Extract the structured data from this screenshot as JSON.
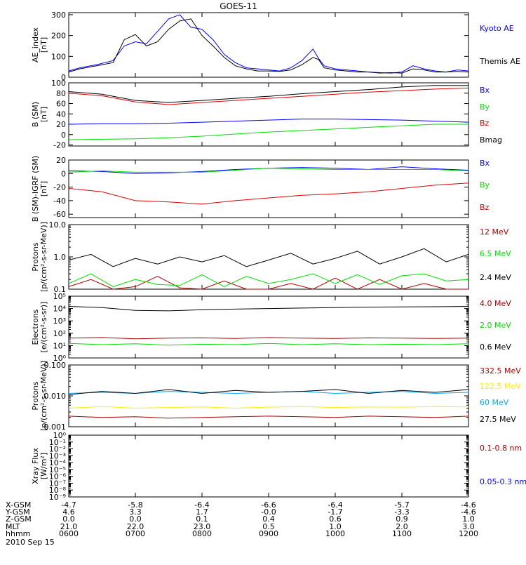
{
  "title": "GOES-11",
  "date_label": "2010 Sep 15",
  "colors": {
    "black": "#000000",
    "blue": "#0000ff",
    "green": "#00e000",
    "red": "#e00000",
    "darkred": "#aa0000",
    "yellow": "#ffee00",
    "cyan": "#00aaff"
  },
  "x_axis": {
    "range": [
      "0600",
      "1200"
    ],
    "ticks": [
      "0600",
      "0700",
      "0800",
      "0900",
      "1000",
      "1100",
      "1200"
    ]
  },
  "orbit_table": {
    "rows": [
      {
        "label": "X-GSM",
        "values": [
          "-4.7",
          "-5.8",
          "-6.4",
          "-6.6",
          "-6.4",
          "-5.7",
          "-4.6"
        ]
      },
      {
        "label": "Y-GSM",
        "values": [
          "4.6",
          "3.3",
          "1.7",
          "-0.0",
          "-1.7",
          "-3.3",
          "-4.6"
        ]
      },
      {
        "label": "Z-GSM",
        "values": [
          "0.0",
          "0.0",
          "0.1",
          "0.4",
          "0.6",
          "0.9",
          "1.0"
        ]
      },
      {
        "label": "MLT",
        "values": [
          "21.0",
          "22.0",
          "23.0",
          "0.5",
          "1.0",
          "2.0",
          "3.0"
        ]
      },
      {
        "label": "hhmm",
        "values": [
          "0600",
          "0700",
          "0800",
          "0900",
          "1000",
          "1100",
          "1200"
        ]
      }
    ]
  },
  "chart_data": [
    {
      "type": "line",
      "ylabel": [
        "AE_index",
        "[nT]"
      ],
      "yscale": "linear",
      "ylim": [
        0,
        310
      ],
      "yticks": [
        "0",
        "100",
        "200",
        "300"
      ],
      "series": [
        {
          "name": "Kyoto AE",
          "color": "blue",
          "x": [
            "0600",
            "0610",
            "0625",
            "0640",
            "0650",
            "0700",
            "0710",
            "0720",
            "0730",
            "0740",
            "0750",
            "0800",
            "0810",
            "0820",
            "0830",
            "0840",
            "0850",
            "0900",
            "0910",
            "0920",
            "0930",
            "0940",
            "0945",
            "0950",
            "1000",
            "1010",
            "1020",
            "1030",
            "1040",
            "1050",
            "1100",
            "1110",
            "1120",
            "1130",
            "1140",
            "1150",
            "1200"
          ],
          "y": [
            30,
            45,
            60,
            80,
            150,
            170,
            160,
            220,
            280,
            300,
            240,
            230,
            180,
            110,
            70,
            45,
            40,
            35,
            30,
            45,
            80,
            135,
            90,
            55,
            40,
            35,
            30,
            25,
            22,
            20,
            25,
            55,
            40,
            30,
            25,
            35,
            30
          ]
        },
        {
          "name": "Themis AE",
          "color": "black",
          "x": [
            "0600",
            "0610",
            "0625",
            "0640",
            "0650",
            "0700",
            "0710",
            "0720",
            "0730",
            "0740",
            "0750",
            "0800",
            "0810",
            "0820",
            "0830",
            "0840",
            "0850",
            "0900",
            "0910",
            "0920",
            "0930",
            "0940",
            "0945",
            "0950",
            "1000",
            "1010",
            "1020",
            "1030",
            "1040",
            "1050",
            "1100",
            "1110",
            "1120",
            "1130",
            "1140",
            "1150",
            "1200"
          ],
          "y": [
            25,
            40,
            55,
            70,
            180,
            205,
            150,
            170,
            230,
            270,
            280,
            200,
            150,
            95,
            55,
            40,
            30,
            30,
            28,
            35,
            60,
            95,
            85,
            45,
            35,
            30,
            25,
            25,
            20,
            22,
            20,
            40,
            35,
            25,
            25,
            28,
            25
          ]
        }
      ]
    },
    {
      "type": "line",
      "ylabel": [
        "B (SM)",
        "[nT]"
      ],
      "yscale": "linear",
      "ylim": [
        -22,
        100
      ],
      "yticks": [
        "-20",
        "0",
        "20",
        "40",
        "60",
        "80",
        "100"
      ],
      "series": [
        {
          "name": "Bx",
          "color": "blue",
          "x": [
            "0600",
            "0630",
            "0700",
            "0730",
            "0800",
            "0830",
            "0900",
            "0930",
            "1000",
            "1030",
            "1100",
            "1130",
            "1200"
          ],
          "y": [
            20,
            21,
            21,
            22,
            24,
            26,
            28,
            30,
            30,
            29,
            28,
            26,
            24
          ]
        },
        {
          "name": "By",
          "color": "green",
          "x": [
            "0600",
            "0630",
            "0700",
            "0730",
            "0800",
            "0830",
            "0900",
            "0930",
            "1000",
            "1030",
            "1100",
            "1130",
            "1200"
          ],
          "y": [
            -10,
            -9,
            -8,
            -6,
            -3,
            1,
            5,
            8,
            11,
            14,
            17,
            20,
            20
          ]
        },
        {
          "name": "Bz",
          "color": "red",
          "x": [
            "0600",
            "0630",
            "0700",
            "0730",
            "0800",
            "0830",
            "0900",
            "0930",
            "1000",
            "1030",
            "1100",
            "1130",
            "1200"
          ],
          "y": [
            80,
            75,
            63,
            58,
            62,
            66,
            70,
            74,
            78,
            82,
            85,
            88,
            90
          ]
        },
        {
          "name": "Bmag",
          "color": "black",
          "x": [
            "0600",
            "0630",
            "0700",
            "0730",
            "0800",
            "0830",
            "0900",
            "0930",
            "1000",
            "1030",
            "1100",
            "1130",
            "1200"
          ],
          "y": [
            83,
            78,
            66,
            62,
            66,
            70,
            74,
            79,
            83,
            87,
            92,
            95,
            95
          ]
        }
      ]
    },
    {
      "type": "line",
      "ylabel": [
        "B (SM)-IGRF (SM)",
        "[nT]"
      ],
      "yscale": "linear",
      "ylim": [
        -65,
        20
      ],
      "yticks": [
        "-60",
        "-40",
        "-20",
        "0",
        "20"
      ],
      "series": [
        {
          "name": "Bx",
          "color": "blue",
          "x": [
            "0600",
            "0630",
            "0700",
            "0730",
            "0800",
            "0830",
            "0900",
            "0930",
            "1000",
            "1030",
            "1100",
            "1130",
            "1200"
          ],
          "y": [
            4,
            3,
            0,
            1,
            3,
            6,
            8,
            9,
            8,
            6,
            10,
            7,
            5
          ]
        },
        {
          "name": "By",
          "color": "green",
          "x": [
            "0600",
            "0630",
            "0700",
            "0730",
            "0800",
            "0830",
            "0900",
            "0930",
            "1000",
            "1030",
            "1100",
            "1130",
            "1200"
          ],
          "y": [
            2,
            4,
            2,
            2,
            2,
            5,
            8,
            7,
            6,
            6,
            6,
            6,
            4
          ]
        },
        {
          "name": "Bz",
          "color": "red",
          "x": [
            "0600",
            "0630",
            "0700",
            "0730",
            "0800",
            "0830",
            "0900",
            "0930",
            "1000",
            "1030",
            "1100",
            "1130",
            "1200"
          ],
          "y": [
            -22,
            -27,
            -40,
            -42,
            -45,
            -40,
            -36,
            -32,
            -30,
            -27,
            -22,
            -17,
            -14
          ]
        }
      ]
    },
    {
      "type": "line",
      "ylabel": [
        "Protons",
        "[p/(cm²-s-sr-MeV)]"
      ],
      "yscale": "log",
      "ylim": [
        0.1,
        10.0
      ],
      "yticks": [
        "0.1",
        "1.0",
        "10.0"
      ],
      "series": [
        {
          "name": "12 MeV",
          "color": "darkred",
          "x": [
            "0600",
            "0620",
            "0640",
            "0700",
            "0720",
            "0740",
            "0800",
            "0820",
            "0840",
            "0900",
            "0920",
            "0940",
            "1000",
            "1020",
            "1040",
            "1100",
            "1120",
            "1140",
            "1200"
          ],
          "y": [
            0.12,
            0.2,
            0.1,
            0.12,
            0.25,
            0.11,
            0.1,
            0.18,
            0.1,
            0.1,
            0.15,
            0.1,
            0.22,
            0.1,
            0.2,
            0.1,
            0.15,
            0.1,
            0.1
          ]
        },
        {
          "name": "6.5 MeV",
          "color": "green",
          "x": [
            "0600",
            "0620",
            "0640",
            "0700",
            "0720",
            "0740",
            "0800",
            "0820",
            "0840",
            "0900",
            "0920",
            "0940",
            "1000",
            "1020",
            "1040",
            "1100",
            "1120",
            "1140",
            "1200"
          ],
          "y": [
            0.15,
            0.3,
            0.12,
            0.2,
            0.14,
            0.13,
            0.28,
            0.12,
            0.25,
            0.15,
            0.2,
            0.3,
            0.15,
            0.28,
            0.14,
            0.26,
            0.3,
            0.18,
            0.2
          ]
        },
        {
          "name": "2.4 MeV",
          "color": "black",
          "x": [
            "0600",
            "0620",
            "0640",
            "0700",
            "0720",
            "0740",
            "0800",
            "0820",
            "0840",
            "0900",
            "0920",
            "0940",
            "1000",
            "1020",
            "1040",
            "1100",
            "1120",
            "1140",
            "1200"
          ],
          "y": [
            0.8,
            1.2,
            0.5,
            0.9,
            0.6,
            1.0,
            0.7,
            1.1,
            0.5,
            0.8,
            1.3,
            0.6,
            0.9,
            1.5,
            0.6,
            1.0,
            1.8,
            0.7,
            1.2
          ]
        }
      ]
    },
    {
      "type": "line",
      "ylabel": [
        "Electrons",
        "[e/(cm²-s-sr)]"
      ],
      "yscale": "log",
      "ylim": [
        1,
        100000
      ],
      "yticks": [
        "10⁰",
        "10¹",
        "10²",
        "10³",
        "10⁴",
        "10⁵"
      ],
      "series": [
        {
          "name": "4.0 MeV",
          "color": "darkred",
          "x": [
            "0600",
            "0630",
            "0700",
            "0730",
            "0800",
            "0830",
            "0900",
            "0930",
            "1000",
            "1030",
            "1100",
            "1130",
            "1200"
          ],
          "y": [
            40,
            45,
            35,
            40,
            42,
            38,
            45,
            40,
            38,
            42,
            40,
            38,
            40
          ]
        },
        {
          "name": "2.0 MeV",
          "color": "green",
          "x": [
            "0600",
            "0630",
            "0700",
            "0730",
            "0800",
            "0830",
            "0900",
            "0930",
            "1000",
            "1030",
            "1100",
            "1130",
            "1200"
          ],
          "y": [
            15,
            12,
            14,
            11,
            13,
            12,
            15,
            12,
            14,
            12,
            13,
            12,
            14
          ]
        },
        {
          "name": "0.6 MeV",
          "color": "black",
          "x": [
            "0600",
            "0630",
            "0700",
            "0730",
            "0800",
            "0830",
            "0900",
            "0930",
            "1000",
            "1030",
            "1100",
            "1130",
            "1200"
          ],
          "y": [
            15000,
            12000,
            7000,
            6500,
            8000,
            9000,
            10000,
            11000,
            12000,
            13000,
            13500,
            14000,
            15000
          ]
        }
      ]
    },
    {
      "type": "line",
      "ylabel": [
        "Protons",
        "[p/(cm²-s-sr-MeV)]"
      ],
      "yscale": "log",
      "ylim": [
        0.001,
        0.1
      ],
      "yticks": [
        "0.001",
        "0.010",
        "0.100"
      ],
      "series": [
        {
          "name": "332.5 MeV",
          "color": "darkred",
          "x": [
            "0600",
            "0630",
            "0700",
            "0730",
            "0800",
            "0830",
            "0900",
            "0930",
            "1000",
            "1030",
            "1100",
            "1130",
            "1200"
          ],
          "y": [
            0.0022,
            0.002,
            0.0021,
            0.0019,
            0.002,
            0.0021,
            0.0022,
            0.0021,
            0.002,
            0.0022,
            0.0021,
            0.002,
            0.0022
          ]
        },
        {
          "name": "122.5 MeV",
          "color": "yellow",
          "x": [
            "0600",
            "0630",
            "0700",
            "0730",
            "0800",
            "0830",
            "0900",
            "0930",
            "1000",
            "1030",
            "1100",
            "1130",
            "1200"
          ],
          "y": [
            0.004,
            0.0045,
            0.004,
            0.0042,
            0.0044,
            0.004,
            0.0043,
            0.0045,
            0.0042,
            0.0044,
            0.0043,
            0.0045,
            0.0044
          ]
        },
        {
          "name": "60 MeV",
          "color": "cyan",
          "x": [
            "0600",
            "0630",
            "0700",
            "0730",
            "0800",
            "0830",
            "0900",
            "0930",
            "1000",
            "1030",
            "1100",
            "1130",
            "1200"
          ],
          "y": [
            0.012,
            0.013,
            0.012,
            0.014,
            0.013,
            0.012,
            0.013,
            0.014,
            0.012,
            0.013,
            0.014,
            0.012,
            0.013
          ]
        },
        {
          "name": "27.5 MeV",
          "color": "black",
          "x": [
            "0600",
            "0630",
            "0700",
            "0730",
            "0800",
            "0830",
            "0900",
            "0930",
            "1000",
            "1030",
            "1100",
            "1130",
            "1200"
          ],
          "y": [
            0.011,
            0.014,
            0.012,
            0.016,
            0.012,
            0.015,
            0.013,
            0.014,
            0.016,
            0.012,
            0.015,
            0.013,
            0.016
          ]
        }
      ]
    },
    {
      "type": "line",
      "ylabel": [
        "Xray Flux",
        "[W/m²]"
      ],
      "yscale": "log",
      "ylim": [
        1e-09,
        1
      ],
      "yticks": [
        "10⁻⁹",
        "10⁻⁸",
        "10⁻⁷",
        "10⁻⁶",
        "10⁻⁵",
        "10⁻⁴",
        "10⁻³",
        "10⁻²",
        "10⁻¹",
        "10⁰"
      ],
      "series": [
        {
          "name": "0.1-0.8 nm",
          "color": "darkred",
          "x": [],
          "y": []
        },
        {
          "name": "0.05-0.3 nm",
          "color": "blue",
          "x": [],
          "y": []
        }
      ]
    }
  ]
}
